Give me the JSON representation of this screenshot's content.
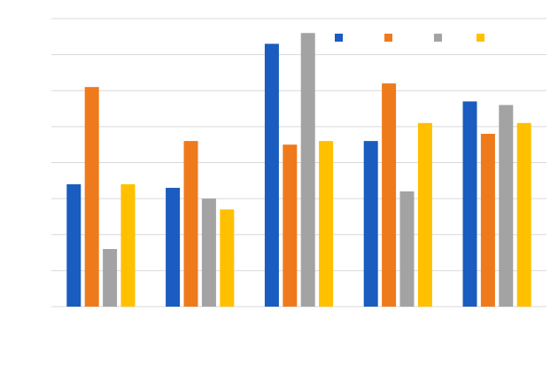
{
  "chart_data": {
    "type": "bar",
    "categories": [
      null,
      null,
      null,
      null,
      null
    ],
    "series": [
      {
        "color": "#1a5cbf",
        "values": [
          3.4,
          3.3,
          7.3,
          4.6,
          5.7
        ]
      },
      {
        "color": "#ef7a1c",
        "values": [
          6.1,
          4.6,
          4.5,
          6.2,
          4.8
        ]
      },
      {
        "color": "#a3a3a3",
        "values": [
          1.6,
          3.0,
          7.6,
          3.2,
          5.6
        ]
      },
      {
        "color": "#ffc000",
        "values": [
          3.4,
          2.7,
          4.6,
          5.1,
          5.1
        ]
      }
    ],
    "ylim": [
      0,
      8
    ],
    "yticks": [
      0,
      1,
      2,
      3,
      4,
      5,
      6,
      7,
      8
    ],
    "grid": true,
    "legend": "top"
  }
}
